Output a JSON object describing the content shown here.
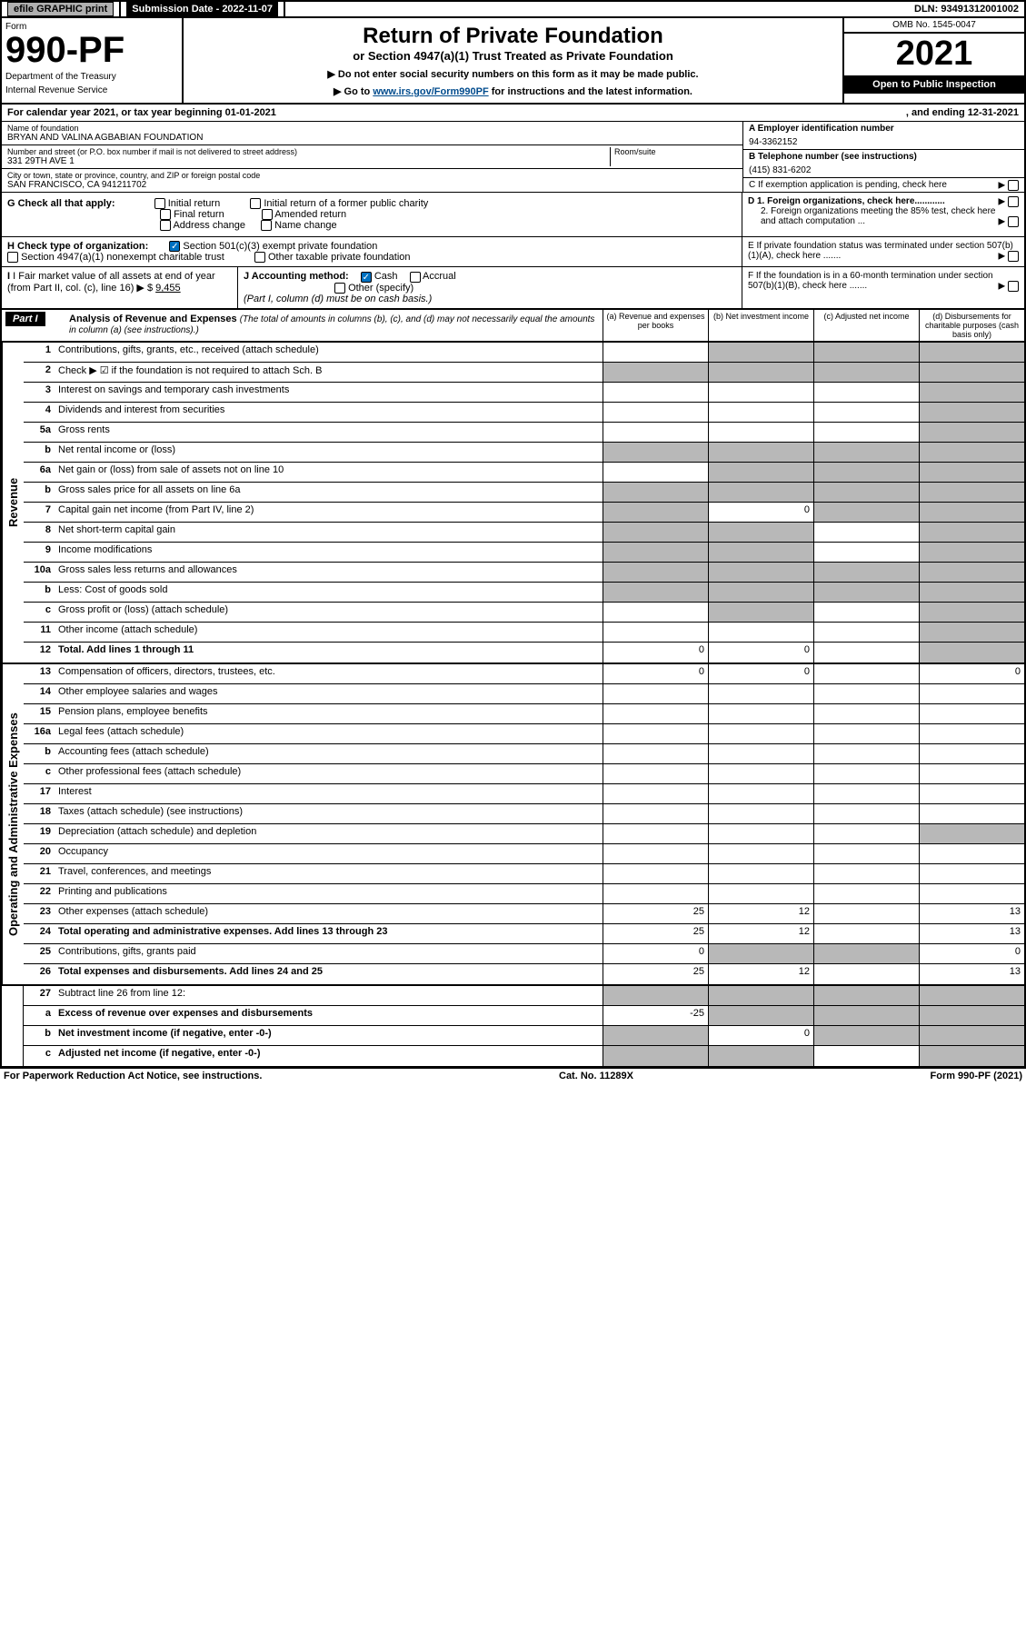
{
  "top_bar": {
    "efile_label": "efile GRAPHIC print",
    "submission_label": "Submission Date - 2022-11-07",
    "dln": "DLN: 93491312001002"
  },
  "header": {
    "form_label": "Form",
    "form_no": "990-PF",
    "dept": "Department of the Treasury",
    "irs": "Internal Revenue Service",
    "title": "Return of Private Foundation",
    "subtitle": "or Section 4947(a)(1) Trust Treated as Private Foundation",
    "instr1": "▶ Do not enter social security numbers on this form as it may be made public.",
    "instr2_pre": "▶ Go to ",
    "instr2_link": "www.irs.gov/Form990PF",
    "instr2_post": " for instructions and the latest information.",
    "omb": "OMB No. 1545-0047",
    "year": "2021",
    "open": "Open to Public Inspection"
  },
  "calendar": {
    "left": "For calendar year 2021, or tax year beginning 01-01-2021",
    "right": ", and ending 12-31-2021"
  },
  "entity": {
    "name_label": "Name of foundation",
    "name": "BRYAN AND VALINA AGBABIAN FOUNDATION",
    "addr_label": "Number and street (or P.O. box number if mail is not delivered to street address)",
    "addr": "331 29TH AVE 1",
    "room_label": "Room/suite",
    "city_label": "City or town, state or province, country, and ZIP or foreign postal code",
    "city": "SAN FRANCISCO, CA  941211702",
    "ein_label": "A Employer identification number",
    "ein": "94-3362152",
    "phone_label": "B Telephone number (see instructions)",
    "phone": "(415) 831-6202",
    "c_label": "C If exemption application is pending, check here"
  },
  "section_g": {
    "g_label": "G Check all that apply:",
    "items": [
      "Initial return",
      "Final return",
      "Address change",
      "Initial return of a former public charity",
      "Amended return",
      "Name change"
    ],
    "d1": "D 1. Foreign organizations, check here............",
    "d2": "2. Foreign organizations meeting the 85% test, check here and attach computation ...",
    "e": "E  If private foundation status was terminated under section 507(b)(1)(A), check here .......",
    "h_label": "H Check type of organization:",
    "h1": "Section 501(c)(3) exempt private foundation",
    "h2": "Section 4947(a)(1) nonexempt charitable trust",
    "h3": "Other taxable private foundation",
    "i_label": "I Fair market value of all assets at end of year (from Part II, col. (c), line 16)",
    "i_val": "9,455",
    "j_label": "J Accounting method:",
    "j_cash": "Cash",
    "j_accrual": "Accrual",
    "j_other": "Other (specify)",
    "j_note": "(Part I, column (d) must be on cash basis.)",
    "f": "F  If the foundation is in a 60-month termination under section 507(b)(1)(B), check here ......."
  },
  "part1": {
    "label": "Part I",
    "title": "Analysis of Revenue and Expenses",
    "note": "(The total of amounts in columns (b), (c), and (d) may not necessarily equal the amounts in column (a) (see instructions).)",
    "cols": {
      "a": "(a)   Revenue and expenses per books",
      "b": "(b)   Net investment income",
      "c": "(c)   Adjusted net income",
      "d": "(d)  Disbursements for charitable purposes (cash basis only)"
    }
  },
  "vert": {
    "revenue": "Revenue",
    "expenses": "Operating and Administrative Expenses"
  },
  "rows": [
    {
      "n": "1",
      "desc": "Contributions, gifts, grants, etc., received (attach schedule)",
      "sh": [
        false,
        true,
        true,
        true
      ]
    },
    {
      "n": "2",
      "desc": "Check ▶ ☑ if the foundation is not required to attach Sch. B",
      "nocols": true
    },
    {
      "n": "3",
      "desc": "Interest on savings and temporary cash investments",
      "sh": [
        false,
        false,
        false,
        true
      ]
    },
    {
      "n": "4",
      "desc": "Dividends and interest from securities",
      "sh": [
        false,
        false,
        false,
        true
      ]
    },
    {
      "n": "5a",
      "desc": "Gross rents",
      "sh": [
        false,
        false,
        false,
        true
      ]
    },
    {
      "n": "b",
      "desc": "Net rental income or (loss)",
      "inset": true,
      "sh": [
        true,
        true,
        true,
        true
      ]
    },
    {
      "n": "6a",
      "desc": "Net gain or (loss) from sale of assets not on line 10",
      "sh": [
        false,
        true,
        true,
        true
      ]
    },
    {
      "n": "b",
      "desc": "Gross sales price for all assets on line 6a",
      "inset": true,
      "sh": [
        true,
        true,
        true,
        true
      ]
    },
    {
      "n": "7",
      "desc": "Capital gain net income (from Part IV, line 2)",
      "sh": [
        true,
        false,
        true,
        true
      ],
      "vals": {
        "b": "0"
      }
    },
    {
      "n": "8",
      "desc": "Net short-term capital gain",
      "sh": [
        true,
        true,
        false,
        true
      ]
    },
    {
      "n": "9",
      "desc": "Income modifications",
      "sh": [
        true,
        true,
        false,
        true
      ]
    },
    {
      "n": "10a",
      "desc": "Gross sales less returns and allowances",
      "inset": true,
      "sh": [
        true,
        true,
        true,
        true
      ]
    },
    {
      "n": "b",
      "desc": "Less: Cost of goods sold",
      "inset": true,
      "sh": [
        true,
        true,
        true,
        true
      ]
    },
    {
      "n": "c",
      "desc": "Gross profit or (loss) (attach schedule)",
      "sh": [
        false,
        true,
        false,
        true
      ]
    },
    {
      "n": "11",
      "desc": "Other income (attach schedule)",
      "sh": [
        false,
        false,
        false,
        true
      ]
    },
    {
      "n": "12",
      "desc": "Total. Add lines 1 through 11",
      "bold": true,
      "sh": [
        false,
        false,
        false,
        true
      ],
      "vals": {
        "a": "0",
        "b": "0"
      }
    }
  ],
  "exp_rows": [
    {
      "n": "13",
      "desc": "Compensation of officers, directors, trustees, etc.",
      "vals": {
        "a": "0",
        "b": "0",
        "d": "0"
      }
    },
    {
      "n": "14",
      "desc": "Other employee salaries and wages"
    },
    {
      "n": "15",
      "desc": "Pension plans, employee benefits"
    },
    {
      "n": "16a",
      "desc": "Legal fees (attach schedule)"
    },
    {
      "n": "b",
      "desc": "Accounting fees (attach schedule)"
    },
    {
      "n": "c",
      "desc": "Other professional fees (attach schedule)"
    },
    {
      "n": "17",
      "desc": "Interest"
    },
    {
      "n": "18",
      "desc": "Taxes (attach schedule) (see instructions)"
    },
    {
      "n": "19",
      "desc": "Depreciation (attach schedule) and depletion",
      "sh": [
        false,
        false,
        false,
        true
      ]
    },
    {
      "n": "20",
      "desc": "Occupancy"
    },
    {
      "n": "21",
      "desc": "Travel, conferences, and meetings"
    },
    {
      "n": "22",
      "desc": "Printing and publications"
    },
    {
      "n": "23",
      "desc": "Other expenses (attach schedule)",
      "vals": {
        "a": "25",
        "b": "12",
        "d": "13"
      }
    },
    {
      "n": "24",
      "desc": "Total operating and administrative expenses. Add lines 13 through 23",
      "bold": true,
      "vals": {
        "a": "25",
        "b": "12",
        "d": "13"
      }
    },
    {
      "n": "25",
      "desc": "Contributions, gifts, grants paid",
      "vals": {
        "a": "0",
        "d": "0"
      },
      "sh": [
        false,
        true,
        true,
        false
      ]
    },
    {
      "n": "26",
      "desc": "Total expenses and disbursements. Add lines 24 and 25",
      "bold": true,
      "vals": {
        "a": "25",
        "b": "12",
        "d": "13"
      }
    }
  ],
  "net_rows": [
    {
      "n": "27",
      "desc": "Subtract line 26 from line 12:",
      "sh": [
        true,
        true,
        true,
        true
      ]
    },
    {
      "n": "a",
      "desc": "Excess of revenue over expenses and disbursements",
      "bold": true,
      "vals": {
        "a": "-25"
      },
      "sh": [
        false,
        true,
        true,
        true
      ]
    },
    {
      "n": "b",
      "desc": "Net investment income (if negative, enter -0-)",
      "bold": true,
      "vals": {
        "b": "0"
      },
      "sh": [
        true,
        false,
        true,
        true
      ]
    },
    {
      "n": "c",
      "desc": "Adjusted net income (if negative, enter -0-)",
      "bold": true,
      "sh": [
        true,
        true,
        false,
        true
      ]
    }
  ],
  "footer": {
    "left": "For Paperwork Reduction Act Notice, see instructions.",
    "mid": "Cat. No. 11289X",
    "right": "Form 990-PF (2021)"
  }
}
